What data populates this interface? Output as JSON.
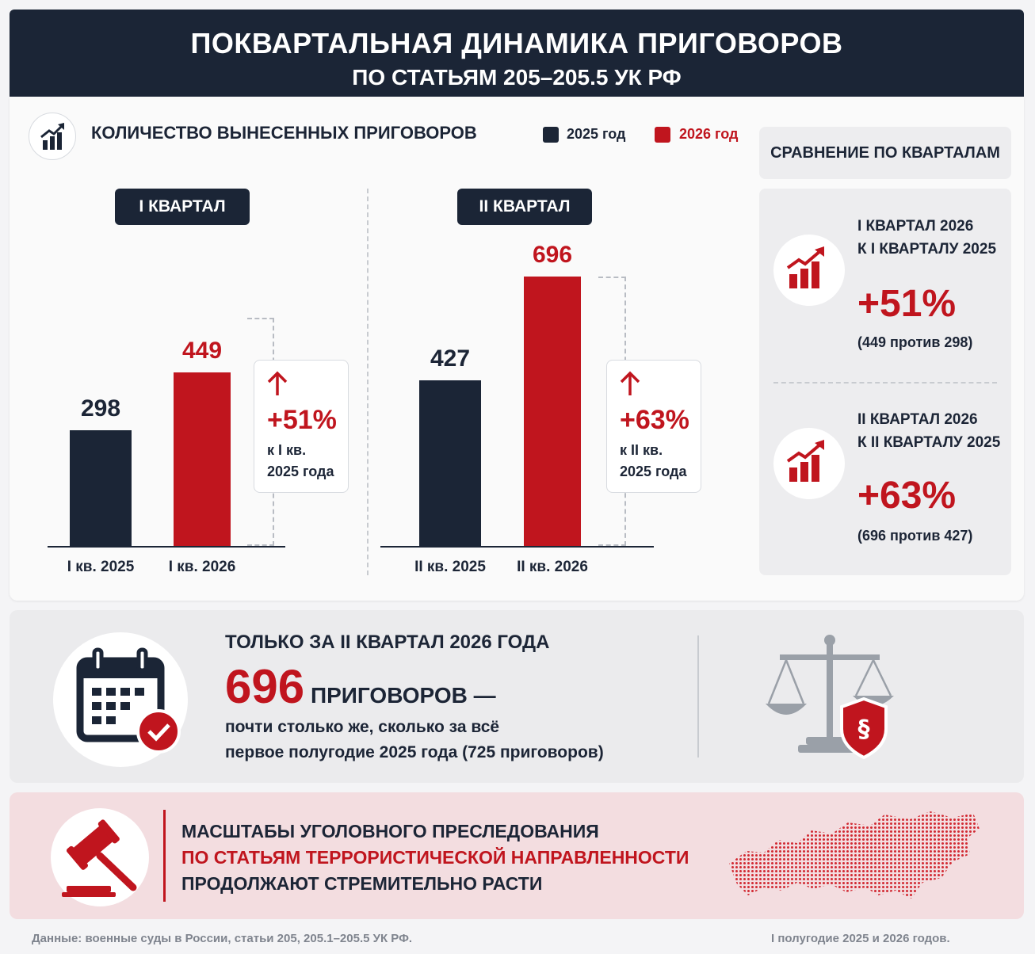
{
  "header": {
    "title": "ПОКВАРТАЛЬНАЯ ДИНАМИКА ПРИГОВОРОВ",
    "subtitle": "ПО СТАТЬЯМ 205–205.5 УК РФ"
  },
  "chart_section": {
    "title": "КОЛИЧЕСТВО ВЫНЕСЕННЫХ ПРИГОВОРОВ",
    "legend": [
      {
        "label": "2025 год",
        "color": "#1b2536"
      },
      {
        "label": "2026 год",
        "color": "#c0151e"
      }
    ]
  },
  "chart_data": [
    {
      "type": "bar",
      "title": "I КВАРТАЛ",
      "categories": [
        "I кв. 2025",
        "I кв. 2026"
      ],
      "values": [
        298,
        449
      ],
      "value_labels": [
        "298",
        "449"
      ],
      "colors": [
        "#1b2536",
        "#c0151e"
      ],
      "ylim": [
        0,
        696
      ],
      "growth": {
        "pct": "+51%",
        "line1": "к I кв.",
        "line2": "2025 года"
      }
    },
    {
      "type": "bar",
      "title": "II КВАРТАЛ",
      "categories": [
        "II кв. 2025",
        "II кв. 2026"
      ],
      "values": [
        427,
        696
      ],
      "value_labels": [
        "427",
        "696"
      ],
      "colors": [
        "#1b2536",
        "#c0151e"
      ],
      "ylim": [
        0,
        696
      ],
      "growth": {
        "pct": "+63%",
        "line1": "к II кв.",
        "line2": "2025 года"
      }
    }
  ],
  "comparison": {
    "title": "СРАВНЕНИЕ ПО КВАРТАЛАМ",
    "items": [
      {
        "line1": "I КВАРТАЛ 2026",
        "line2": "К I КВАРТАЛУ 2025",
        "pct": "+51%",
        "detail": "(449 против 298)"
      },
      {
        "line1": "II КВАРТАЛ 2026",
        "line2": "К II КВАРТАЛУ 2025",
        "pct": "+63%",
        "detail": "(696 против 427)"
      }
    ]
  },
  "highlight": {
    "heading": "ТОЛЬКО ЗА II КВАРТАЛ 2026 ГОДА",
    "number": "696",
    "number_suffix": "ПРИГОВОРОВ —",
    "line1": "почти столько же, сколько за всё",
    "line2": "первое полугодие 2025 года (725 приговоров)"
  },
  "conclusion": {
    "line1": "МАСШТАБЫ УГОЛОВНОГО ПРЕСЛЕДОВАНИЯ",
    "line2": "ПО СТАТЬЯМ ТЕРРОРИСТИЧЕСКОЙ НАПРАВЛЕННОСТИ",
    "line3": "ПРОДОЛЖАЮТ СТРЕМИТЕЛЬНО РАСТИ"
  },
  "footer": {
    "source": "Данные: военные суды в России, статьи 205, 205.1–205.5 УК РФ.",
    "period": "I полугодие 2025 и 2026 годов."
  }
}
